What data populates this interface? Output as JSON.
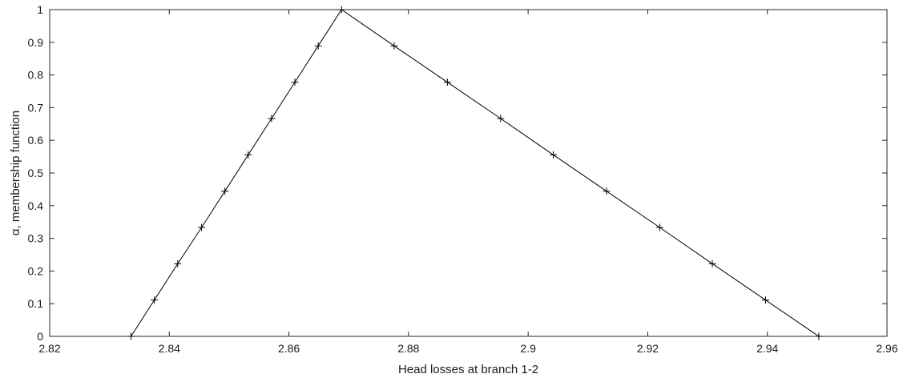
{
  "chart_data": {
    "type": "line",
    "title": "",
    "xlabel": "Head losses at branch 1-2",
    "ylabel": "α, membership function",
    "xlim": [
      2.82,
      2.96
    ],
    "ylim": [
      0,
      1
    ],
    "x_ticks": [
      "2.82",
      "2.84",
      "2.86",
      "2.88",
      "2.9",
      "2.92",
      "2.94",
      "2.96"
    ],
    "y_ticks": [
      "0",
      "0.1",
      "0.2",
      "0.3",
      "0.4",
      "0.5",
      "0.6",
      "0.7",
      "0.8",
      "0.9",
      "1"
    ],
    "grid": false,
    "marker": "+",
    "line_color": "#000000",
    "series": [
      {
        "x": [
          2.8336,
          2.8375,
          2.8414,
          2.8454,
          2.8493,
          2.8532,
          2.8571,
          2.861,
          2.8649,
          2.8688,
          2.8776,
          2.8865,
          2.8954,
          2.9042,
          2.9131,
          2.922,
          2.9308,
          2.9397,
          2.9486
        ],
        "y": [
          0,
          0.1111,
          0.2222,
          0.3333,
          0.4444,
          0.5556,
          0.6667,
          0.7778,
          0.8889,
          1,
          0.8889,
          0.7778,
          0.6667,
          0.5556,
          0.4444,
          0.3333,
          0.2222,
          0.1111,
          0
        ]
      }
    ]
  }
}
